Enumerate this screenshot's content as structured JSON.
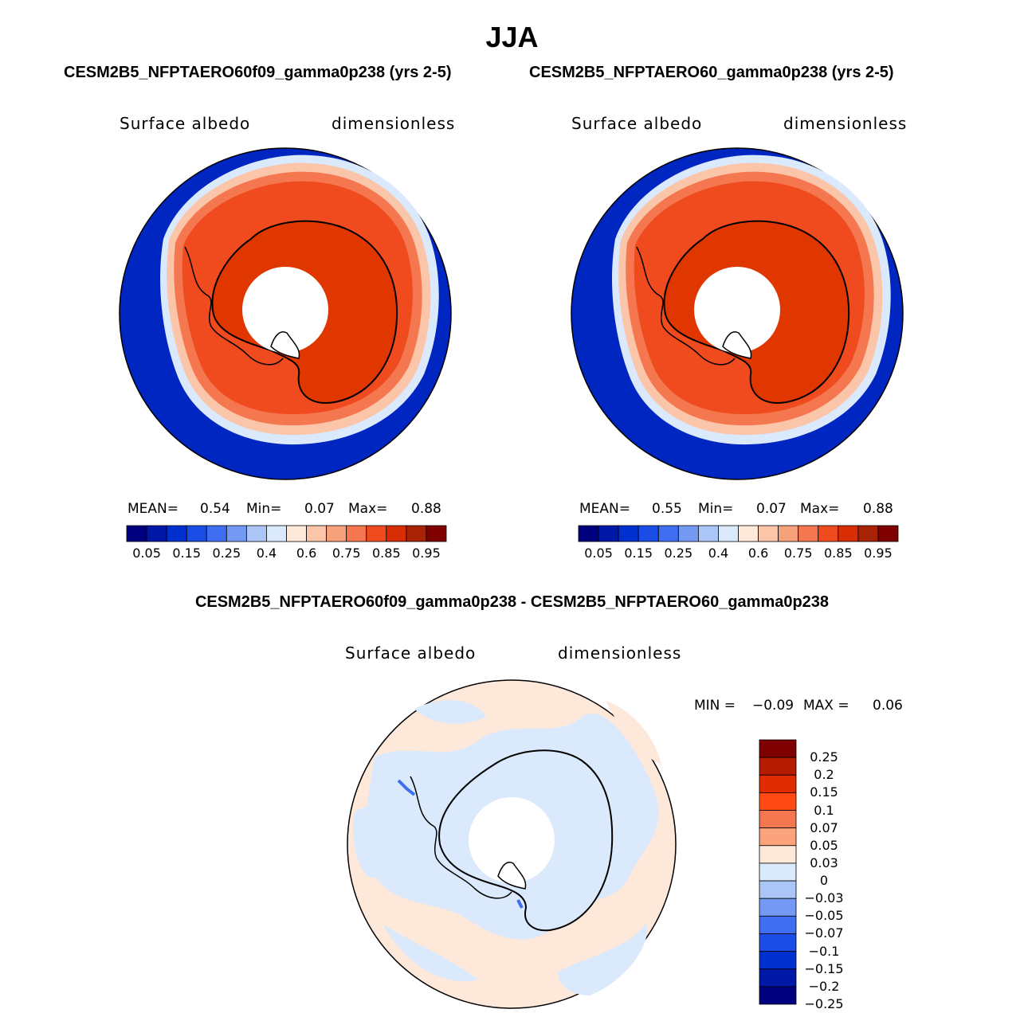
{
  "figure": {
    "title": "JJA",
    "colors": {
      "ocean_low": "#0026c2",
      "ice_high": "#e83a00",
      "land": "#e03600",
      "diff_pos": "#fde8da",
      "diff_neg": "#dbe9fd",
      "coast": "#000000",
      "pole_hole": "#ffffff"
    }
  },
  "panels": [
    {
      "case_title": "CESM2B5_NFPTAERO60f09_gamma0p238 (yrs 2-5)",
      "variable": "Surface albedo",
      "units": "dimensionless",
      "stats": {
        "mean_label": "MEAN=",
        "mean": "0.54",
        "min_label": "Min=",
        "min": "0.07",
        "max_label": "Max=",
        "max": "0.88"
      }
    },
    {
      "case_title": "CESM2B5_NFPTAERO60_gamma0p238 (yrs 2-5)",
      "variable": "Surface albedo",
      "units": "dimensionless",
      "stats": {
        "mean_label": "MEAN=",
        "mean": "0.55",
        "min_label": "Min=",
        "min": "0.07",
        "max_label": "Max=",
        "max": "0.88"
      }
    }
  ],
  "colorbar": {
    "colors": [
      "#00007f",
      "#0018a8",
      "#0030d0",
      "#1a4de6",
      "#3f6ef0",
      "#7499f2",
      "#abc5f7",
      "#dbe9fd",
      "#fde8da",
      "#fbc5a9",
      "#f7a07c",
      "#f4774f",
      "#ef4b1f",
      "#d92d05",
      "#a82206",
      "#7f0000"
    ],
    "tick_labels": [
      "0.05",
      "0.15",
      "0.25",
      "0.4",
      "0.6",
      "0.75",
      "0.85",
      "0.95"
    ]
  },
  "difference": {
    "title": "CESM2B5_NFPTAERO60f09_gamma0p238 - CESM2B5_NFPTAERO60_gamma0p238",
    "variable": "Surface albedo",
    "units": "dimensionless",
    "min_label": "MIN =",
    "min": "−0.09",
    "max_label": "MAX =",
    "max": "0.06",
    "colorbar": {
      "colors": [
        "#7f0000",
        "#b41b00",
        "#e02c00",
        "#ff4a14",
        "#f4774f",
        "#fba37c",
        "#fde8da",
        "#dbe9fd",
        "#abc5f7",
        "#7499f2",
        "#3f6ef0",
        "#1a4de6",
        "#0030d0",
        "#0018a8",
        "#00007f"
      ],
      "tick_labels": [
        "0.25",
        "0.2",
        "0.15",
        "0.1",
        "0.07",
        "0.05",
        "0.03",
        "0",
        "−0.03",
        "−0.05",
        "−0.07",
        "−0.1",
        "−0.15",
        "−0.2",
        "−0.25"
      ]
    }
  }
}
